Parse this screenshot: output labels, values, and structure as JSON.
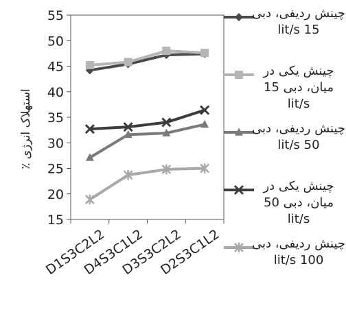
{
  "chart_data": {
    "type": "line",
    "title": "",
    "xlabel": "",
    "ylabel": "استهلاک انرژی ٪",
    "categories": [
      "D1S3C2L2",
      "D4S3C1L2",
      "D3S3C2L2",
      "D2S3C1L2"
    ],
    "ylim": [
      15,
      55
    ],
    "yticks": [
      15,
      20,
      25,
      30,
      35,
      40,
      45,
      50,
      55
    ],
    "grid": false,
    "legend_position": "right",
    "series": [
      {
        "name": "چینش ردیفی، دبی 15 lit/s",
        "values": [
          44.2,
          45.4,
          47.2,
          47.4
        ],
        "color": "#4a4a4a",
        "marker": "diamond"
      },
      {
        "name": "چینش یکی در میان، دبی 15 lit/s",
        "values": [
          45.2,
          45.8,
          48.0,
          47.6
        ],
        "color": "#b5b5b5",
        "marker": "square"
      },
      {
        "name": "چینش ردیفی، دبی 50 lit/s",
        "values": [
          27.1,
          31.6,
          31.9,
          33.6
        ],
        "color": "#7a7a7a",
        "marker": "triangle"
      },
      {
        "name": "چینش یکی در میان، دبی 50 lit/s",
        "values": [
          32.7,
          33.1,
          34.0,
          36.4
        ],
        "color": "#3c3c3c",
        "marker": "x"
      },
      {
        "name": "چینش ردیفی، دبی 100 lit/s",
        "values": [
          18.9,
          23.7,
          24.8,
          25.0
        ],
        "color": "#a8a8a8",
        "marker": "star"
      }
    ]
  }
}
